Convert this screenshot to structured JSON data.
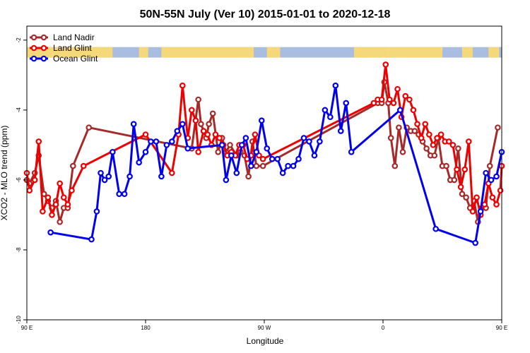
{
  "chart_data": {
    "type": "line",
    "title": "50N-55N July (Ver 10)   2015-01-01 to 2020-12-18",
    "xlabel": "Longitude",
    "ylabel": "XCO2 - MLO trend (ppm)",
    "xlim": [
      90,
      450
    ],
    "ylim": [
      -10,
      -1.6
    ],
    "xticks": [
      {
        "value": 90,
        "label": "90 E"
      },
      {
        "value": 180,
        "label": "180"
      },
      {
        "value": 270,
        "label": "90 W"
      },
      {
        "value": 360,
        "label": "0"
      },
      {
        "value": 450,
        "label": "90 E"
      }
    ],
    "yticks": [
      {
        "value": -2,
        "label": "-2"
      },
      {
        "value": -4,
        "label": "-4"
      },
      {
        "value": -6,
        "label": "-6"
      },
      {
        "value": -8,
        "label": "-8"
      },
      {
        "value": -10,
        "label": "-10"
      }
    ],
    "legend_position": "top-left",
    "land_mask_strip": {
      "y_range": [
        -2.5,
        -2.2
      ],
      "land_color": "#f5d87a",
      "ocean_color": "#a9bde0",
      "land_segments": [
        [
          90,
          155
        ],
        [
          175,
          182
        ],
        [
          192,
          262
        ],
        [
          272,
          282
        ],
        [
          338,
          362
        ],
        [
          362,
          405
        ],
        [
          420,
          428
        ],
        [
          440,
          448
        ]
      ]
    },
    "series": [
      {
        "name": "Land Nadir",
        "color": "#a52a2a",
        "points": [
          [
            90,
            -6.0
          ],
          [
            92,
            -6.1
          ],
          [
            96,
            -5.8
          ],
          [
            99,
            -5.3
          ],
          [
            103,
            -6.4
          ],
          [
            106,
            -6.6
          ],
          [
            109,
            -6.8
          ],
          [
            112,
            -6.6
          ],
          [
            115,
            -7.2
          ],
          [
            118,
            -6.8
          ],
          [
            121,
            -6.8
          ],
          [
            125,
            -5.6
          ],
          [
            137,
            -4.5
          ],
          [
            215,
            -5.1
          ],
          [
            220,
            -3.7
          ],
          [
            222,
            -4.4
          ],
          [
            226,
            -4.8
          ],
          [
            228,
            -4.4
          ],
          [
            231,
            -4.1
          ],
          [
            235,
            -5.2
          ],
          [
            238,
            -4.8
          ],
          [
            241,
            -5.2
          ],
          [
            244,
            -5.0
          ],
          [
            249,
            -5.3
          ],
          [
            252,
            -5.2
          ],
          [
            255,
            -5.3
          ],
          [
            258,
            -5.9
          ],
          [
            261,
            -4.9
          ],
          [
            264,
            -5.6
          ],
          [
            269,
            -5.6
          ],
          [
            356,
            -3.8
          ],
          [
            359,
            -3.8
          ],
          [
            361,
            -3.2
          ],
          [
            364,
            -3.8
          ],
          [
            366,
            -4.8
          ],
          [
            369,
            -5.6
          ],
          [
            372,
            -4.5
          ],
          [
            375,
            -5.2
          ],
          [
            378,
            -4.5
          ],
          [
            381,
            -4.6
          ],
          [
            384,
            -4.6
          ],
          [
            387,
            -4.7
          ],
          [
            390,
            -4.9
          ],
          [
            393,
            -5.1
          ],
          [
            396,
            -5.3
          ],
          [
            399,
            -5.3
          ],
          [
            402,
            -4.8
          ],
          [
            405,
            -5.6
          ],
          [
            408,
            -5.6
          ],
          [
            411,
            -6.0
          ],
          [
            414,
            -6.0
          ],
          [
            417,
            -5.1
          ],
          [
            420,
            -6.4
          ],
          [
            423,
            -6.5
          ],
          [
            426,
            -6.8
          ],
          [
            429,
            -6.6
          ],
          [
            432,
            -7.2
          ],
          [
            435,
            -6.8
          ],
          [
            438,
            -6.8
          ],
          [
            441,
            -5.6
          ],
          [
            447,
            -4.5
          ]
        ]
      },
      {
        "name": "Land Glint",
        "color": "#ee0000",
        "points": [
          [
            90,
            -5.8
          ],
          [
            92,
            -6.3
          ],
          [
            96,
            -6.0
          ],
          [
            99,
            -4.9
          ],
          [
            102,
            -6.9
          ],
          [
            106,
            -6.5
          ],
          [
            109,
            -7.0
          ],
          [
            112,
            -6.7
          ],
          [
            115,
            -6.1
          ],
          [
            118,
            -6.5
          ],
          [
            121,
            -6.7
          ],
          [
            124,
            -6.3
          ],
          [
            133,
            -5.6
          ],
          [
            180,
            -4.7
          ],
          [
            200,
            -5.8
          ],
          [
            205,
            -4.7
          ],
          [
            208,
            -3.3
          ],
          [
            212,
            -4.8
          ],
          [
            215,
            -4.0
          ],
          [
            218,
            -4.3
          ],
          [
            220,
            -5.2
          ],
          [
            224,
            -4.6
          ],
          [
            227,
            -4.7
          ],
          [
            230,
            -5.0
          ],
          [
            233,
            -4.7
          ],
          [
            236,
            -4.8
          ],
          [
            239,
            -5.0
          ],
          [
            242,
            -5.3
          ],
          [
            245,
            -5.2
          ],
          [
            248,
            -5.3
          ],
          [
            251,
            -5.0
          ],
          [
            254,
            -5.0
          ],
          [
            257,
            -5.4
          ],
          [
            260,
            -5.3
          ],
          [
            263,
            -4.7
          ],
          [
            266,
            -5.3
          ],
          [
            269,
            -5.4
          ],
          [
            353,
            -3.8
          ],
          [
            356,
            -3.7
          ],
          [
            359,
            -3.7
          ],
          [
            362,
            -2.7
          ],
          [
            365,
            -3.7
          ],
          [
            368,
            -3.8
          ],
          [
            371,
            -3.4
          ],
          [
            374,
            -4.2
          ],
          [
            377,
            -3.6
          ],
          [
            380,
            -3.7
          ],
          [
            383,
            -4.0
          ],
          [
            386,
            -4.4
          ],
          [
            389,
            -4.8
          ],
          [
            392,
            -4.4
          ],
          [
            395,
            -4.7
          ],
          [
            398,
            -5.0
          ],
          [
            401,
            -4.8
          ],
          [
            404,
            -4.7
          ],
          [
            407,
            -4.9
          ],
          [
            410,
            -4.9
          ],
          [
            413,
            -5.0
          ],
          [
            416,
            -5.7
          ],
          [
            419,
            -6.2
          ],
          [
            422,
            -5.7
          ],
          [
            425,
            -4.9
          ],
          [
            428,
            -6.9
          ],
          [
            431,
            -6.5
          ],
          [
            434,
            -7.0
          ],
          [
            437,
            -6.7
          ],
          [
            440,
            -6.1
          ],
          [
            443,
            -6.5
          ],
          [
            446,
            -6.7
          ],
          [
            449,
            -6.3
          ],
          [
            450,
            -5.6
          ]
        ]
      },
      {
        "name": "Ocean Glint",
        "color": "#0000ee",
        "points": [
          [
            108,
            -7.5
          ],
          [
            139,
            -7.7
          ],
          [
            143,
            -6.9
          ],
          [
            146,
            -5.8
          ],
          [
            149,
            -6.0
          ],
          [
            152,
            -5.9
          ],
          [
            155,
            -5.2
          ],
          [
            160,
            -6.4
          ],
          [
            164,
            -6.4
          ],
          [
            168,
            -5.9
          ],
          [
            171,
            -4.4
          ],
          [
            175,
            -5.5
          ],
          [
            180,
            -5.2
          ],
          [
            184,
            -4.9
          ],
          [
            188,
            -4.9
          ],
          [
            192,
            -5.9
          ],
          [
            196,
            -5.0
          ],
          [
            200,
            -4.9
          ],
          [
            204,
            -4.6
          ],
          [
            208,
            -4.4
          ],
          [
            212,
            -5.1
          ],
          [
            238,
            -5.0
          ],
          [
            241,
            -6.0
          ],
          [
            245,
            -5.3
          ],
          [
            249,
            -5.8
          ],
          [
            253,
            -5.0
          ],
          [
            256,
            -4.8
          ],
          [
            260,
            -5.6
          ],
          [
            264,
            -5.2
          ],
          [
            268,
            -4.3
          ],
          [
            272,
            -5.1
          ],
          [
            276,
            -5.4
          ],
          [
            280,
            -5.4
          ],
          [
            284,
            -5.8
          ],
          [
            288,
            -5.6
          ],
          [
            292,
            -5.6
          ],
          [
            296,
            -5.4
          ],
          [
            300,
            -4.8
          ],
          [
            304,
            -4.9
          ],
          [
            308,
            -5.3
          ],
          [
            312,
            -4.9
          ],
          [
            316,
            -4.0
          ],
          [
            320,
            -4.2
          ],
          [
            324,
            -3.3
          ],
          [
            328,
            -4.6
          ],
          [
            332,
            -3.8
          ],
          [
            336,
            -5.2
          ],
          [
            373,
            -4.0
          ],
          [
            400,
            -7.4
          ],
          [
            430,
            -7.8
          ],
          [
            434,
            -6.9
          ],
          [
            438,
            -5.8
          ],
          [
            442,
            -6.0
          ],
          [
            446,
            -5.9
          ],
          [
            450,
            -5.2
          ]
        ]
      }
    ]
  }
}
